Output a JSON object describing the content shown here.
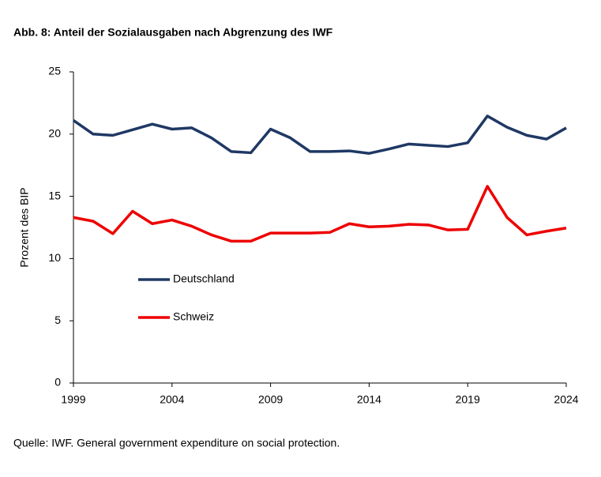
{
  "chart_data": {
    "type": "line",
    "title": "Abb. 8: Anteil der Sozialausgaben nach Abgrenzung des IWF",
    "y_label": "Prozent des BIP",
    "source": "Quelle: IWF. General government expenditure on social protection.",
    "x": [
      1999,
      2000,
      2001,
      2002,
      2003,
      2004,
      2005,
      2006,
      2007,
      2008,
      2009,
      2010,
      2011,
      2012,
      2013,
      2014,
      2015,
      2016,
      2017,
      2018,
      2019,
      2020,
      2021,
      2022,
      2023,
      2024
    ],
    "series": [
      {
        "name": "Deutschland",
        "color": "#1f3864",
        "values": [
          21.1,
          20.0,
          19.9,
          20.35,
          20.8,
          20.4,
          20.5,
          19.7,
          18.6,
          18.5,
          20.4,
          19.7,
          18.6,
          18.6,
          18.65,
          18.45,
          18.8,
          19.2,
          19.1,
          19.0,
          19.3,
          21.45,
          20.55,
          19.9,
          19.6,
          20.5
        ]
      },
      {
        "name": "Schweiz",
        "color": "#ee0000",
        "values": [
          13.3,
          13.0,
          12.0,
          13.8,
          12.8,
          13.1,
          12.6,
          11.9,
          11.4,
          11.4,
          12.05,
          12.05,
          12.05,
          12.1,
          12.8,
          12.55,
          12.6,
          12.75,
          12.7,
          12.3,
          12.35,
          15.8,
          13.3,
          11.9,
          12.2,
          12.45
        ]
      }
    ],
    "xlim": [
      1999,
      2024
    ],
    "xticks": [
      1999,
      2004,
      2009,
      2014,
      2019,
      2024
    ],
    "ylim": [
      0,
      25
    ],
    "yticks": [
      0,
      5,
      10,
      15,
      20,
      25
    ],
    "legend": "left"
  }
}
